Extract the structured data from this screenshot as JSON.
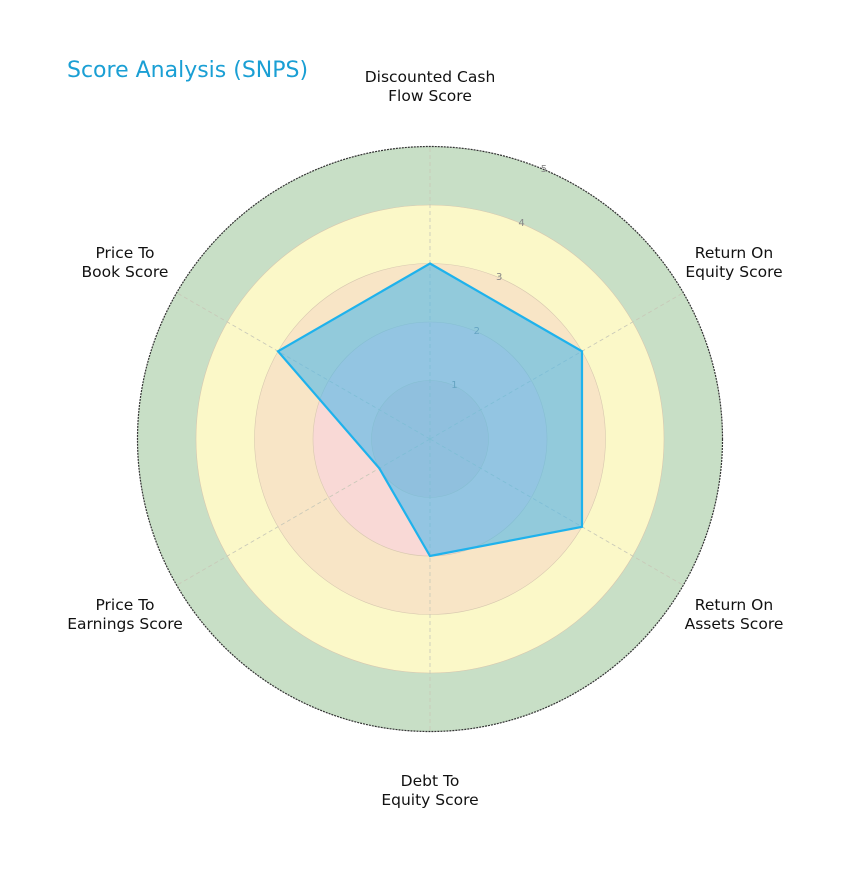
{
  "title": "Score Analysis (SNPS)",
  "colors": {
    "title": "#1a9fd4",
    "polygon_fill": "#4fb8ea",
    "polygon_stroke": "#1fb2ec",
    "ring_0_1": "#f3cccc",
    "ring_1_2": "#f9d9d6",
    "ring_2_3": "#f8e5c6",
    "ring_3_4": "#fbf8c8",
    "ring_4_5": "#c8dfc6"
  },
  "labels": {
    "dcf": "Discounted Cash\nFlow Score",
    "roe": "Return On\nEquity Score",
    "roa": "Return On\nAssets Score",
    "de": "Debt To\nEquity Score",
    "pe": "Price To\nEarnings Score",
    "pb": "Price To\nBook Score"
  },
  "ticks": [
    "1",
    "2",
    "3",
    "4",
    "5"
  ],
  "chart_data": {
    "type": "radar",
    "title": "Score Analysis (SNPS)",
    "categories": [
      "Discounted Cash Flow Score",
      "Return On Equity Score",
      "Return On Assets Score",
      "Debt To Equity Score",
      "Price To Earnings Score",
      "Price To Book Score"
    ],
    "series": [
      {
        "name": "SNPS",
        "values": [
          3,
          3,
          3,
          2,
          1,
          3
        ]
      }
    ],
    "rlim": [
      0,
      5
    ],
    "radial_ticks": [
      1,
      2,
      3,
      4,
      5
    ],
    "background_bands": [
      {
        "range": [
          0,
          2
        ],
        "color": "#f9d9d6"
      },
      {
        "range": [
          2,
          3
        ],
        "color": "#f8e5c6"
      },
      {
        "range": [
          3,
          4
        ],
        "color": "#fbf8c8"
      },
      {
        "range": [
          4,
          5
        ],
        "color": "#c8dfc6"
      }
    ],
    "grid": true,
    "legend": false
  }
}
